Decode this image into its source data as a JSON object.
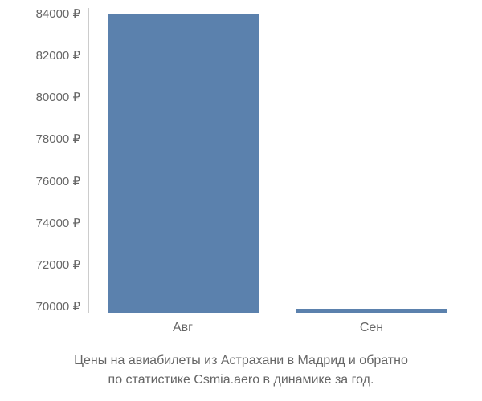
{
  "chart": {
    "type": "bar",
    "y_ticks": [
      "84000 ₽",
      "82000 ₽",
      "80000 ₽",
      "78000 ₽",
      "76000 ₽",
      "74000 ₽",
      "72000 ₽",
      "70000 ₽"
    ],
    "y_min": 70000,
    "y_max": 84000,
    "categories": [
      "Авг",
      "Сен"
    ],
    "values": [
      83700,
      70200
    ],
    "bar_color": "#5b81ad",
    "bar_width": 0.8,
    "background_color": "#ffffff",
    "axis_color": "#cccccc",
    "tick_color": "#666666",
    "tick_fontsize": 15,
    "label_fontsize": 16,
    "caption_fontsize": 16,
    "caption_color": "#666666"
  },
  "caption": {
    "line1": "Цены на авиабилеты из Астрахани в Мадрид и обратно",
    "line2": "по статистике Csmia.aero в динамике за год."
  }
}
